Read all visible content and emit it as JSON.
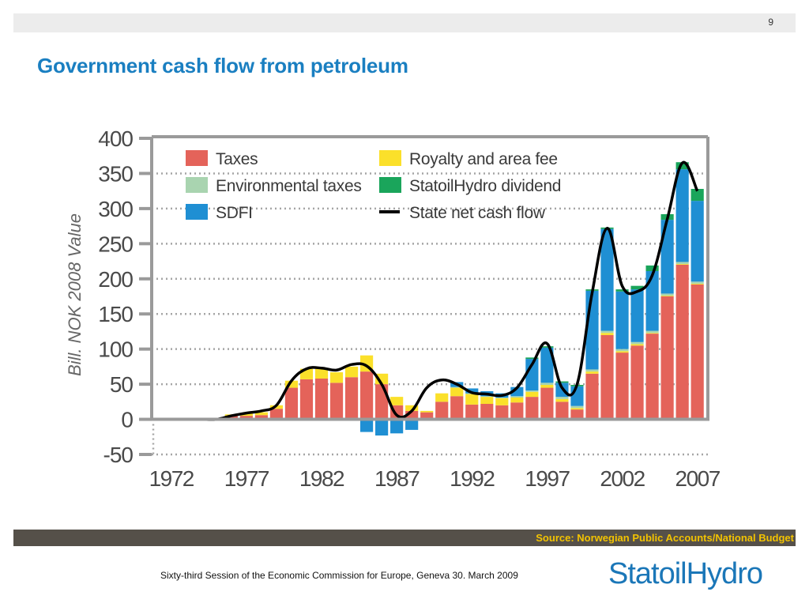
{
  "slide": {
    "page_number": "9",
    "title": "Government cash flow from petroleum",
    "source": "Source: Norwegian Public Accounts/National Budget",
    "footer": "Sixty-third Session of the Economic Commission for Europe, Geneva 30. March 2009",
    "logo_text": "StatoilHydro"
  },
  "colors": {
    "taxes": "#e4635a",
    "royalty": "#fbe02a",
    "env": "#a9d4b0",
    "dividend": "#1aa55b",
    "sdfi": "#1f8fd3",
    "line": "#000000",
    "title": "#1a7fc1",
    "axis": "#9a9a9a",
    "source_bg": "#555049",
    "source_text": "#f3c300"
  },
  "chart_data": {
    "type": "bar",
    "stacked": true,
    "ylabel": "Bill. NOK 2008 Value",
    "ylim": [
      -50,
      400
    ],
    "yticks": [
      -50,
      0,
      50,
      100,
      150,
      200,
      250,
      300,
      350,
      400
    ],
    "xticks": [
      "1972",
      "1977",
      "1982",
      "1987",
      "1992",
      "1997",
      "2002",
      "2007"
    ],
    "grid": true,
    "legend_position": "top-left",
    "categories": [
      1971,
      1972,
      1973,
      1974,
      1975,
      1976,
      1977,
      1978,
      1979,
      1980,
      1981,
      1982,
      1983,
      1984,
      1985,
      1986,
      1987,
      1988,
      1989,
      1990,
      1991,
      1992,
      1993,
      1994,
      1995,
      1996,
      1997,
      1998,
      1999,
      2000,
      2001,
      2002,
      2003,
      2004,
      2005,
      2006,
      2007
    ],
    "series": [
      {
        "name": "Taxes",
        "color_key": "taxes",
        "values": [
          0,
          0,
          0,
          0,
          2,
          5,
          5,
          6,
          15,
          45,
          57,
          58,
          52,
          60,
          68,
          50,
          20,
          12,
          10,
          25,
          33,
          21,
          22,
          20,
          24,
          32,
          45,
          25,
          14,
          65,
          120,
          95,
          105,
          122,
          175,
          220,
          192
        ]
      },
      {
        "name": "Royalty and area fee",
        "color_key": "royalty",
        "values": [
          0,
          0,
          0,
          0,
          0,
          2,
          3,
          4,
          5,
          10,
          15,
          15,
          15,
          15,
          23,
          15,
          12,
          8,
          2,
          12,
          12,
          15,
          10,
          10,
          7,
          7,
          4,
          4,
          2,
          3,
          3,
          2,
          2,
          1,
          1,
          1,
          1
        ]
      },
      {
        "name": "Environmental taxes",
        "color_key": "env",
        "values": [
          0,
          0,
          0,
          0,
          0,
          0,
          0,
          0,
          0,
          0,
          0,
          0,
          0,
          0,
          0,
          0,
          0,
          0,
          0,
          0,
          1,
          1,
          1,
          1,
          2,
          2,
          3,
          3,
          3,
          3,
          3,
          3,
          3,
          3,
          3,
          3,
          3
        ]
      },
      {
        "name": "SDFI",
        "color_key": "sdfi",
        "values": [
          0,
          0,
          0,
          0,
          0,
          0,
          0,
          0,
          0,
          0,
          0,
          0,
          0,
          0,
          -18,
          -23,
          -20,
          -15,
          0,
          0,
          7,
          7,
          7,
          6,
          13,
          45,
          50,
          20,
          28,
          112,
          145,
          82,
          75,
          85,
          105,
          132,
          115
        ]
      },
      {
        "name": "StatoilHydro dividend",
        "color_key": "dividend",
        "values": [
          0,
          0,
          0,
          0,
          0,
          0,
          0,
          0,
          0,
          0,
          0,
          0,
          0,
          0,
          0,
          0,
          0,
          0,
          0,
          0,
          0,
          0,
          0,
          0,
          0,
          2,
          2,
          2,
          2,
          2,
          2,
          3,
          5,
          8,
          8,
          10,
          17
        ]
      }
    ],
    "line": {
      "name": "State net cash flow",
      "values": [
        0,
        0,
        0,
        0,
        0,
        5,
        9,
        12,
        20,
        55,
        72,
        73,
        70,
        78,
        76,
        50,
        6,
        12,
        45,
        56,
        50,
        38,
        36,
        34,
        45,
        78,
        108,
        45,
        50,
        180,
        272,
        190,
        182,
        205,
        285,
        365,
        325
      ]
    }
  }
}
